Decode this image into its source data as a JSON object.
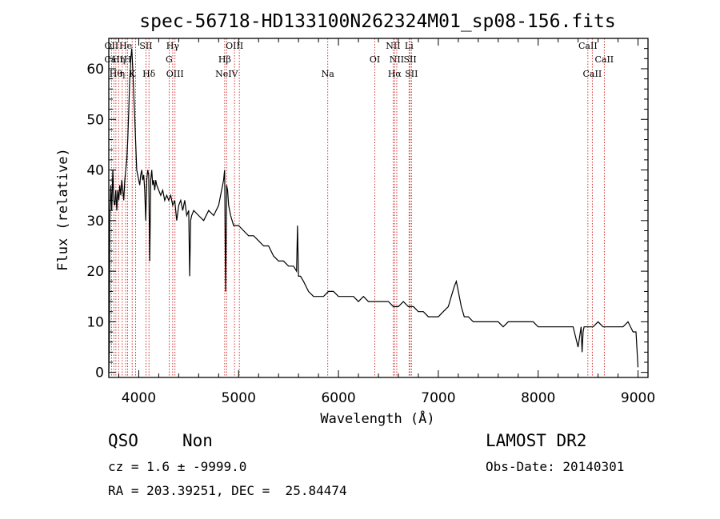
{
  "chart_data": {
    "type": "line",
    "title": "spec-56718-HD133100N262324M01_sp08-156.fits",
    "xlabel": "Wavelength (Å)",
    "ylabel": "Flux (relative)",
    "xlim": [
      3700,
      9100
    ],
    "ylim": [
      -1,
      66
    ],
    "x_ticks": [
      4000,
      5000,
      6000,
      7000,
      8000,
      9000
    ],
    "y_ticks": [
      0,
      10,
      20,
      30,
      40,
      50,
      60
    ],
    "grid": false,
    "series": [
      {
        "x": [
          3700,
          3705,
          3710,
          3720,
          3730,
          3740,
          3750,
          3760,
          3770,
          3780,
          3790,
          3800,
          3810,
          3820,
          3830,
          3840,
          3850,
          3860,
          3870,
          3880,
          3890,
          3900,
          3910,
          3920,
          3930,
          3940,
          3950,
          3960,
          3970,
          3980,
          3990,
          4000,
          4010,
          4020,
          4030,
          4040,
          4050,
          4060,
          4070,
          4080,
          4090,
          4100,
          4110,
          4120,
          4130,
          4140,
          4150,
          4160,
          4170,
          4180,
          4200,
          4220,
          4240,
          4260,
          4280,
          4300,
          4320,
          4340,
          4360,
          4380,
          4400,
          4420,
          4440,
          4460,
          4480,
          4500,
          4510,
          4520,
          4530,
          4550,
          4600,
          4650,
          4700,
          4750,
          4800,
          4830,
          4850,
          4860,
          4870,
          4880,
          4890,
          4900,
          4920,
          4950,
          5000,
          5050,
          5100,
          5150,
          5200,
          5250,
          5300,
          5350,
          5400,
          5450,
          5500,
          5550,
          5580,
          5590,
          5600,
          5620,
          5650,
          5700,
          5750,
          5800,
          5850,
          5900,
          5950,
          6000,
          6050,
          6100,
          6150,
          6200,
          6250,
          6300,
          6350,
          6400,
          6450,
          6500,
          6550,
          6600,
          6650,
          6700,
          6750,
          6800,
          6850,
          6900,
          6950,
          7000,
          7050,
          7100,
          7130,
          7160,
          7180,
          7200,
          7230,
          7260,
          7300,
          7350,
          7400,
          7450,
          7500,
          7550,
          7600,
          7650,
          7700,
          7750,
          7800,
          7850,
          7900,
          7950,
          8000,
          8050,
          8100,
          8150,
          8200,
          8250,
          8300,
          8350,
          8400,
          8430,
          8440,
          8450,
          8460,
          8500,
          8550,
          8600,
          8650,
          8700,
          8750,
          8800,
          8850,
          8900,
          8950,
          8980,
          9000
        ],
        "y": [
          0,
          5,
          30,
          37,
          32,
          40,
          34,
          33,
          36,
          32,
          36,
          34,
          37,
          35,
          38,
          36,
          34,
          38,
          40,
          42,
          46,
          52,
          58,
          62,
          64,
          60,
          55,
          50,
          45,
          40,
          39,
          38,
          37,
          39,
          40,
          38,
          39,
          36,
          30,
          38,
          40,
          39,
          22,
          38,
          40,
          37,
          38,
          36,
          38,
          37,
          36,
          35,
          36,
          34,
          35,
          34,
          35,
          33,
          34,
          30,
          33,
          34,
          32,
          34,
          31,
          32,
          19,
          30,
          31,
          32,
          31,
          30,
          32,
          31,
          33,
          36,
          38,
          40,
          16,
          37,
          36,
          33,
          31,
          29,
          29,
          28,
          27,
          27,
          26,
          25,
          25,
          23,
          22,
          22,
          21,
          21,
          20,
          29,
          19,
          19,
          18,
          16,
          15,
          15,
          15,
          16,
          16,
          15,
          15,
          15,
          15,
          14,
          15,
          14,
          14,
          14,
          14,
          14,
          13,
          13,
          14,
          13,
          13,
          12,
          12,
          11,
          11,
          11,
          12,
          13,
          15,
          17,
          18,
          16,
          13,
          11,
          11,
          10,
          10,
          10,
          10,
          10,
          10,
          9,
          10,
          10,
          10,
          10,
          10,
          10,
          9,
          9,
          9,
          9,
          9,
          9,
          9,
          9,
          5,
          9,
          4,
          8,
          9,
          9,
          9,
          10,
          9,
          9,
          9,
          9,
          9,
          10,
          8,
          8,
          1
        ]
      }
    ],
    "line_markers": [
      {
        "x": 3727,
        "label": "OII",
        "row": 1
      },
      {
        "x": 3750,
        "label": "CaII",
        "row": 2
      },
      {
        "x": 3771,
        "label": "Hθ",
        "row": 3
      },
      {
        "x": 3798,
        "label": "Hη",
        "row": 2
      },
      {
        "x": 3835,
        "label": "η",
        "row": 3
      },
      {
        "x": 3869,
        "label": "He",
        "row": 1
      },
      {
        "x": 3889,
        "label": "H",
        "row": 2
      },
      {
        "x": 3934,
        "label": "K",
        "row": 3
      },
      {
        "x": 3969,
        "label": "",
        "row": 0
      },
      {
        "x": 4072,
        "label": "SII",
        "row": 1
      },
      {
        "x": 4102,
        "label": "Hδ",
        "row": 3
      },
      {
        "x": 4304,
        "label": "G",
        "row": 2
      },
      {
        "x": 4340,
        "label": "Hγ",
        "row": 1
      },
      {
        "x": 4363,
        "label": "OIII",
        "row": 3
      },
      {
        "x": 4861,
        "label": "Hβ",
        "row": 2
      },
      {
        "x": 4880,
        "label": "NeIV",
        "row": 3
      },
      {
        "x": 4959,
        "label": "OIII",
        "row": 1
      },
      {
        "x": 5007,
        "label": "",
        "row": 0
      },
      {
        "x": 5893,
        "label": "Na",
        "row": 3
      },
      {
        "x": 6364,
        "label": "OI",
        "row": 2
      },
      {
        "x": 6548,
        "label": "NII",
        "row": 1
      },
      {
        "x": 6563,
        "label": "Hα",
        "row": 3
      },
      {
        "x": 6584,
        "label": "NII",
        "row": 2
      },
      {
        "x": 6707,
        "label": "Li",
        "row": 1
      },
      {
        "x": 6717,
        "label": "SII",
        "row": 2
      },
      {
        "x": 6731,
        "label": "SII",
        "row": 3
      },
      {
        "x": 8498,
        "label": "CaII",
        "row": 1
      },
      {
        "x": 8542,
        "label": "CaII",
        "row": 3
      },
      {
        "x": 8662,
        "label": "CaII",
        "row": 2
      }
    ],
    "line_color": "#000000",
    "marker_color": "#c80000"
  },
  "info": {
    "class": "QSO",
    "subclass": "Non",
    "survey": "LAMOST DR2",
    "cz": "cz = 1.6 ± -9999.0",
    "obs_date": "Obs-Date: 20140301",
    "radec": "RA = 203.39251, DEC =  25.84474"
  }
}
